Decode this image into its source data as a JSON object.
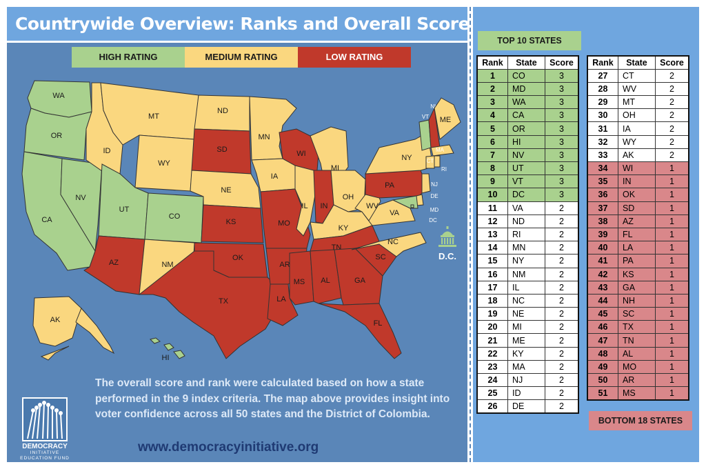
{
  "title": "Countrywide Overview: Ranks and Overall Scores",
  "legend": {
    "high": "HIGH RATING",
    "medium": "MEDIUM RATING",
    "low": "LOW RATING"
  },
  "colors": {
    "high": "#a9d18e",
    "medium": "#fad77f",
    "low": "#c0392b",
    "background": "#5a86b8",
    "panel": "#6fa6df"
  },
  "dc_label": "D.C.",
  "description": "The overall score and rank were calculated based on how a state performed in the 9 index criteria.  The map above provides insight into voter confidence across all 50 states and the District of Colombia.",
  "url": "www.democracyinitiative.org",
  "logo": {
    "name": "DEMOCRACY",
    "name2": "INITIATIVE",
    "sub": "EDUCATION FUND"
  },
  "top_label": "TOP 10 STATES",
  "bottom_label": "BOTTOM 18 STATES",
  "headers": {
    "rank": "Rank",
    "state": "State",
    "score": "Score"
  },
  "map_states": [
    {
      "abbr": "WA",
      "rating": "high"
    },
    {
      "abbr": "OR",
      "rating": "high"
    },
    {
      "abbr": "CA",
      "rating": "high"
    },
    {
      "abbr": "NV",
      "rating": "high"
    },
    {
      "abbr": "ID",
      "rating": "medium"
    },
    {
      "abbr": "MT",
      "rating": "medium"
    },
    {
      "abbr": "WY",
      "rating": "medium"
    },
    {
      "abbr": "UT",
      "rating": "high"
    },
    {
      "abbr": "CO",
      "rating": "high"
    },
    {
      "abbr": "AZ",
      "rating": "low"
    },
    {
      "abbr": "NM",
      "rating": "medium"
    },
    {
      "abbr": "ND",
      "rating": "medium"
    },
    {
      "abbr": "SD",
      "rating": "low"
    },
    {
      "abbr": "NE",
      "rating": "medium"
    },
    {
      "abbr": "KS",
      "rating": "low"
    },
    {
      "abbr": "OK",
      "rating": "low"
    },
    {
      "abbr": "TX",
      "rating": "low"
    },
    {
      "abbr": "MN",
      "rating": "medium"
    },
    {
      "abbr": "IA",
      "rating": "medium"
    },
    {
      "abbr": "MO",
      "rating": "low"
    },
    {
      "abbr": "AR",
      "rating": "low"
    },
    {
      "abbr": "LA",
      "rating": "low"
    },
    {
      "abbr": "WI",
      "rating": "low"
    },
    {
      "abbr": "IL",
      "rating": "medium"
    },
    {
      "abbr": "MI",
      "rating": "medium"
    },
    {
      "abbr": "IN",
      "rating": "low"
    },
    {
      "abbr": "OH",
      "rating": "medium"
    },
    {
      "abbr": "KY",
      "rating": "medium"
    },
    {
      "abbr": "TN",
      "rating": "low"
    },
    {
      "abbr": "MS",
      "rating": "low"
    },
    {
      "abbr": "AL",
      "rating": "low"
    },
    {
      "abbr": "GA",
      "rating": "low"
    },
    {
      "abbr": "FL",
      "rating": "low"
    },
    {
      "abbr": "SC",
      "rating": "low"
    },
    {
      "abbr": "NC",
      "rating": "medium"
    },
    {
      "abbr": "VA",
      "rating": "medium"
    },
    {
      "abbr": "WV",
      "rating": "medium"
    },
    {
      "abbr": "PA",
      "rating": "low"
    },
    {
      "abbr": "NY",
      "rating": "medium"
    },
    {
      "abbr": "VT",
      "rating": "high"
    },
    {
      "abbr": "NH",
      "rating": "low"
    },
    {
      "abbr": "ME",
      "rating": "medium"
    },
    {
      "abbr": "MA",
      "rating": "medium"
    },
    {
      "abbr": "CT",
      "rating": "medium"
    },
    {
      "abbr": "RI",
      "rating": "medium"
    },
    {
      "abbr": "NJ",
      "rating": "medium"
    },
    {
      "abbr": "DE",
      "rating": "medium"
    },
    {
      "abbr": "MD",
      "rating": "high"
    },
    {
      "abbr": "DC",
      "rating": "high"
    },
    {
      "abbr": "AK",
      "rating": "medium"
    },
    {
      "abbr": "HI",
      "rating": "high"
    }
  ],
  "ranks_left": [
    {
      "rank": "1",
      "state": "CO",
      "score": "3",
      "rating": "high"
    },
    {
      "rank": "2",
      "state": "MD",
      "score": "3",
      "rating": "high"
    },
    {
      "rank": "3",
      "state": "WA",
      "score": "3",
      "rating": "high"
    },
    {
      "rank": "4",
      "state": "CA",
      "score": "3",
      "rating": "high"
    },
    {
      "rank": "5",
      "state": "OR",
      "score": "3",
      "rating": "high"
    },
    {
      "rank": "6",
      "state": "HI",
      "score": "3",
      "rating": "high"
    },
    {
      "rank": "7",
      "state": "NV",
      "score": "3",
      "rating": "high"
    },
    {
      "rank": "8",
      "state": "UT",
      "score": "3",
      "rating": "high"
    },
    {
      "rank": "9",
      "state": "VT",
      "score": "3",
      "rating": "high"
    },
    {
      "rank": "10",
      "state": "DC",
      "score": "3",
      "rating": "high"
    },
    {
      "rank": "11",
      "state": "VA",
      "score": "2",
      "rating": "medium"
    },
    {
      "rank": "12",
      "state": "ND",
      "score": "2",
      "rating": "medium"
    },
    {
      "rank": "13",
      "state": "RI",
      "score": "2",
      "rating": "medium"
    },
    {
      "rank": "14",
      "state": "MN",
      "score": "2",
      "rating": "medium"
    },
    {
      "rank": "15",
      "state": "NY",
      "score": "2",
      "rating": "medium"
    },
    {
      "rank": "16",
      "state": "NM",
      "score": "2",
      "rating": "medium"
    },
    {
      "rank": "17",
      "state": "IL",
      "score": "2",
      "rating": "medium"
    },
    {
      "rank": "18",
      "state": "NC",
      "score": "2",
      "rating": "medium"
    },
    {
      "rank": "19",
      "state": "NE",
      "score": "2",
      "rating": "medium"
    },
    {
      "rank": "20",
      "state": "MI",
      "score": "2",
      "rating": "medium"
    },
    {
      "rank": "21",
      "state": "ME",
      "score": "2",
      "rating": "medium"
    },
    {
      "rank": "22",
      "state": "KY",
      "score": "2",
      "rating": "medium"
    },
    {
      "rank": "23",
      "state": "MA",
      "score": "2",
      "rating": "medium"
    },
    {
      "rank": "24",
      "state": "NJ",
      "score": "2",
      "rating": "medium"
    },
    {
      "rank": "25",
      "state": "ID",
      "score": "2",
      "rating": "medium"
    },
    {
      "rank": "26",
      "state": "DE",
      "score": "2",
      "rating": "medium"
    }
  ],
  "ranks_right": [
    {
      "rank": "27",
      "state": "CT",
      "score": "2",
      "rating": "medium"
    },
    {
      "rank": "28",
      "state": "WV",
      "score": "2",
      "rating": "medium"
    },
    {
      "rank": "29",
      "state": "MT",
      "score": "2",
      "rating": "medium"
    },
    {
      "rank": "30",
      "state": "OH",
      "score": "2",
      "rating": "medium"
    },
    {
      "rank": "31",
      "state": "IA",
      "score": "2",
      "rating": "medium"
    },
    {
      "rank": "32",
      "state": "WY",
      "score": "2",
      "rating": "medium"
    },
    {
      "rank": "33",
      "state": "AK",
      "score": "2",
      "rating": "medium"
    },
    {
      "rank": "34",
      "state": "WI",
      "score": "1",
      "rating": "low"
    },
    {
      "rank": "35",
      "state": "IN",
      "score": "1",
      "rating": "low"
    },
    {
      "rank": "36",
      "state": "OK",
      "score": "1",
      "rating": "low"
    },
    {
      "rank": "37",
      "state": "SD",
      "score": "1",
      "rating": "low"
    },
    {
      "rank": "38",
      "state": "AZ",
      "score": "1",
      "rating": "low"
    },
    {
      "rank": "39",
      "state": "FL",
      "score": "1",
      "rating": "low"
    },
    {
      "rank": "40",
      "state": "LA",
      "score": "1",
      "rating": "low"
    },
    {
      "rank": "41",
      "state": "PA",
      "score": "1",
      "rating": "low"
    },
    {
      "rank": "42",
      "state": "KS",
      "score": "1",
      "rating": "low"
    },
    {
      "rank": "43",
      "state": "GA",
      "score": "1",
      "rating": "low"
    },
    {
      "rank": "44",
      "state": "NH",
      "score": "1",
      "rating": "low"
    },
    {
      "rank": "45",
      "state": "SC",
      "score": "1",
      "rating": "low"
    },
    {
      "rank": "46",
      "state": "TX",
      "score": "1",
      "rating": "low"
    },
    {
      "rank": "47",
      "state": "TN",
      "score": "1",
      "rating": "low"
    },
    {
      "rank": "48",
      "state": "AL",
      "score": "1",
      "rating": "low"
    },
    {
      "rank": "49",
      "state": "MO",
      "score": "1",
      "rating": "low"
    },
    {
      "rank": "50",
      "state": "AR",
      "score": "1",
      "rating": "low"
    },
    {
      "rank": "51",
      "state": "MS",
      "score": "1",
      "rating": "low"
    }
  ]
}
